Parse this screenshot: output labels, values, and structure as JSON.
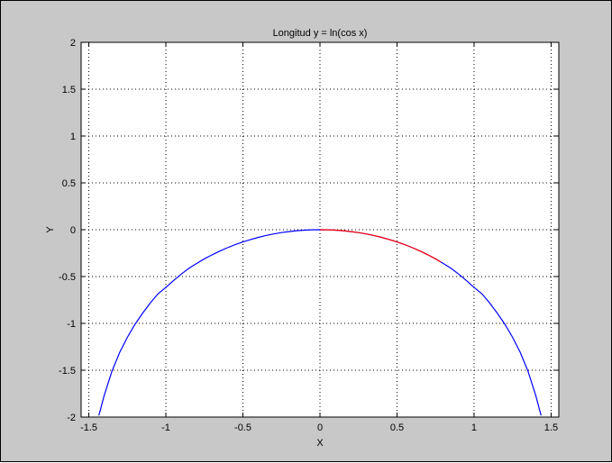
{
  "chart_data": {
    "type": "line",
    "title": "Longitud y = ln(cos x)",
    "xlabel": "X",
    "ylabel": "Y",
    "xlim": [
      -1.55,
      1.55
    ],
    "ylim": [
      -2,
      2
    ],
    "grid": true,
    "x_ticks": [
      -1.5,
      -1,
      -0.5,
      0,
      0.5,
      1,
      1.5
    ],
    "x_tick_labels": [
      "-1.5",
      "-1",
      "-0.5",
      "0",
      "0.5",
      "1",
      "1.5"
    ],
    "y_ticks": [
      -2,
      -1.5,
      -1,
      -0.5,
      0,
      0.5,
      1,
      1.5,
      2
    ],
    "y_tick_labels": [
      "-2",
      "-1.5",
      "-1",
      "-0.5",
      "0",
      "0.5",
      "1",
      "1.5",
      "2"
    ],
    "series": [
      {
        "color": "#0000ff",
        "x": [
          -1.435,
          -1.4,
          -1.35,
          -1.3,
          -1.25,
          -1.2,
          -1.15,
          -1.1,
          -1.05,
          -1.0,
          -0.95,
          -0.9,
          -0.85,
          -0.8,
          -0.75,
          -0.7,
          -0.65,
          -0.6,
          -0.55,
          -0.5,
          -0.45,
          -0.4,
          -0.35,
          -0.3,
          -0.25,
          -0.2,
          -0.15,
          -0.1,
          -0.05,
          0.0,
          0.05,
          0.1,
          0.15,
          0.2,
          0.25,
          0.3,
          0.35,
          0.4,
          0.45,
          0.5,
          0.55,
          0.6,
          0.65,
          0.7,
          0.75,
          0.8,
          0.85,
          0.9,
          0.95,
          1.0,
          1.05,
          1.1,
          1.15,
          1.2,
          1.25,
          1.3,
          1.35,
          1.4,
          1.435
        ],
        "y": [
          -1.983,
          -1.77,
          -1.511,
          -1.312,
          -1.149,
          -1.01,
          -0.889,
          -0.78,
          -0.683,
          -0.616,
          -0.542,
          -0.474,
          -0.412,
          -0.361,
          -0.311,
          -0.268,
          -0.228,
          -0.192,
          -0.159,
          -0.131,
          -0.105,
          -0.082,
          -0.062,
          -0.045,
          -0.031,
          -0.02,
          -0.011,
          -0.005,
          -0.001,
          0.0,
          -0.001,
          -0.005,
          -0.011,
          -0.02,
          -0.031,
          -0.045,
          -0.062,
          -0.082,
          -0.105,
          -0.131,
          -0.159,
          -0.192,
          -0.228,
          -0.268,
          -0.311,
          -0.361,
          -0.412,
          -0.474,
          -0.542,
          -0.616,
          -0.683,
          -0.78,
          -0.889,
          -1.01,
          -1.149,
          -1.312,
          -1.511,
          -1.77,
          -1.983
        ]
      },
      {
        "color": "#ff0000",
        "x": [
          0.0,
          0.05,
          0.1,
          0.15,
          0.2,
          0.25,
          0.3,
          0.35,
          0.4,
          0.45,
          0.5,
          0.55,
          0.6,
          0.65,
          0.7,
          0.75,
          0.785
        ],
        "y": [
          0.0,
          -0.001,
          -0.005,
          -0.011,
          -0.02,
          -0.031,
          -0.045,
          -0.062,
          -0.082,
          -0.105,
          -0.131,
          -0.159,
          -0.192,
          -0.228,
          -0.268,
          -0.311,
          -0.347
        ]
      }
    ]
  }
}
